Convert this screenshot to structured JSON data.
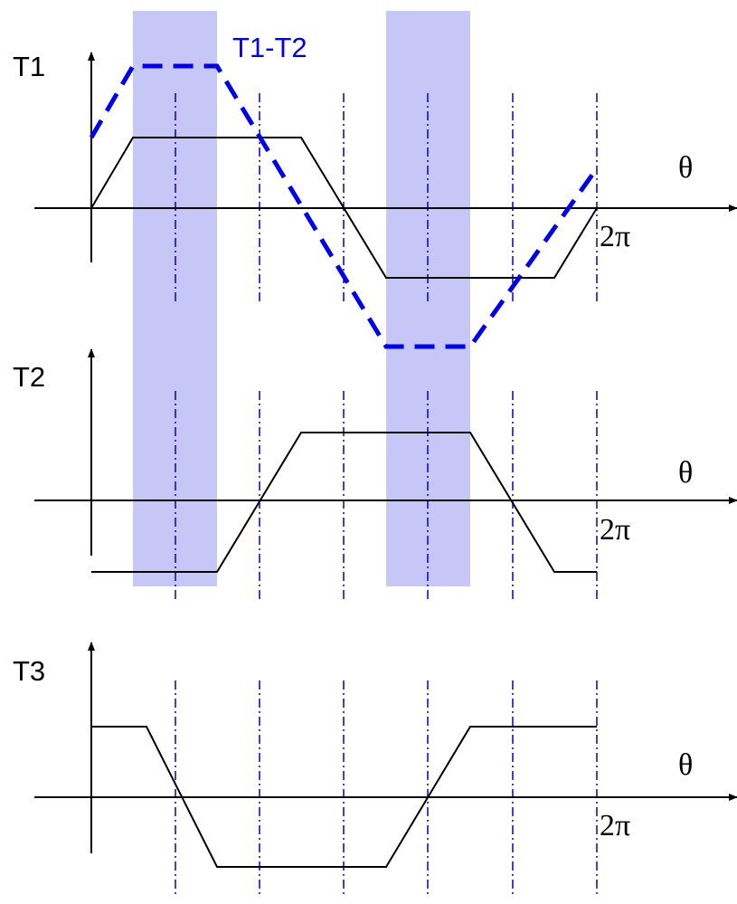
{
  "labels": {
    "t1": "T1",
    "t2": "T2",
    "t3": "T3",
    "diff": "T1-T2",
    "theta": "θ",
    "two_pi": "2π"
  },
  "colors": {
    "band": "#c6c6f7",
    "dashed_curve": "#0000ee",
    "divider_lines": "#0000cc",
    "axes": "#000000",
    "waveform": "#000000"
  }
}
